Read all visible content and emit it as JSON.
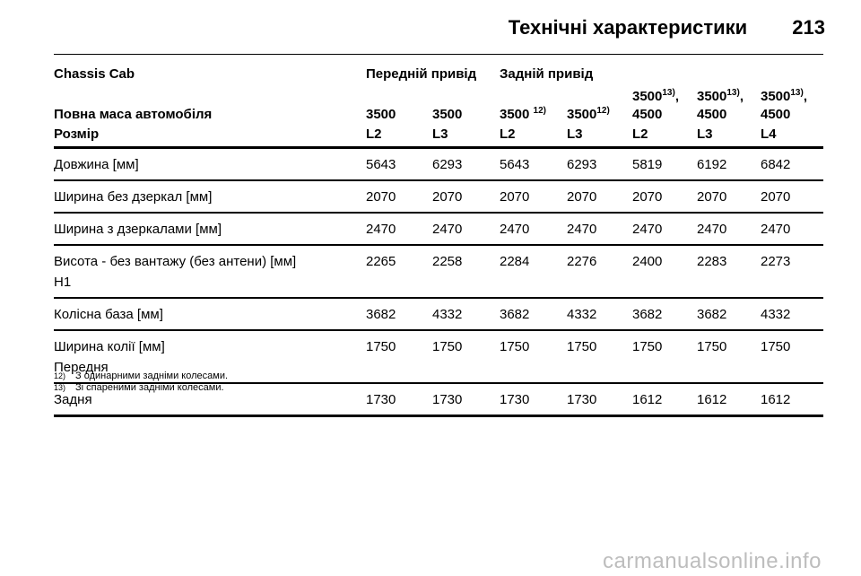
{
  "header": {
    "title": "Технічні характеристики",
    "page_number": "213"
  },
  "table": {
    "model_row": {
      "label": "Chassis Cab",
      "front_drive": "Передній привід",
      "rear_drive": "Задній привід"
    },
    "mass_row": {
      "label": "Повна маса автомобіля",
      "values": [
        {
          "text": "3500",
          "sup": ""
        },
        {
          "text": "3500",
          "sup": ""
        },
        {
          "text": "3500 ",
          "sup": "12)"
        },
        {
          "text": "3500",
          "sup": "12)"
        },
        {
          "line1": "3500",
          "sup": "13)",
          "suffix": ",",
          "line2": "4500"
        },
        {
          "line1": "3500",
          "sup": "13)",
          "suffix": ",",
          "line2": "4500"
        },
        {
          "line1": "3500",
          "sup": "13)",
          "suffix": ",",
          "line2": "4500"
        }
      ]
    },
    "size_row": {
      "label": "Розмір",
      "values": [
        "L2",
        "L3",
        "L2",
        "L3",
        "L2",
        "L3",
        "L4"
      ]
    },
    "rows": [
      {
        "label": "Довжина [мм]",
        "sub": "",
        "values": [
          "5643",
          "6293",
          "5643",
          "6293",
          "5819",
          "6192",
          "6842"
        ]
      },
      {
        "label": "Ширина без дзеркал [мм]",
        "sub": "",
        "values": [
          "2070",
          "2070",
          "2070",
          "2070",
          "2070",
          "2070",
          "2070"
        ]
      },
      {
        "label": "Ширина з дзеркалами [мм]",
        "sub": "",
        "values": [
          "2470",
          "2470",
          "2470",
          "2470",
          "2470",
          "2470",
          "2470"
        ]
      },
      {
        "label": "Висота - без вантажу (без антени) [мм]",
        "sub": "H1",
        "values": [
          "2265",
          "2258",
          "2284",
          "2276",
          "2400",
          "2283",
          "2273"
        ]
      },
      {
        "label": "Колісна база [мм]",
        "sub": "",
        "values": [
          "3682",
          "4332",
          "3682",
          "4332",
          "3682",
          "3682",
          "4332"
        ]
      },
      {
        "label": "Ширина колії [мм]",
        "sub": "Передня",
        "values": [
          "1750",
          "1750",
          "1750",
          "1750",
          "1750",
          "1750",
          "1750"
        ]
      },
      {
        "label": "Задня",
        "sub": "",
        "values": [
          "1730",
          "1730",
          "1730",
          "1730",
          "1612",
          "1612",
          "1612"
        ]
      }
    ]
  },
  "footnotes": [
    {
      "num": "12)",
      "text": "З одинарними задніми колесами."
    },
    {
      "num": "13)",
      "text": "Зі спареними задніми колесами."
    }
  ],
  "watermark": "carmanualsonline.info"
}
